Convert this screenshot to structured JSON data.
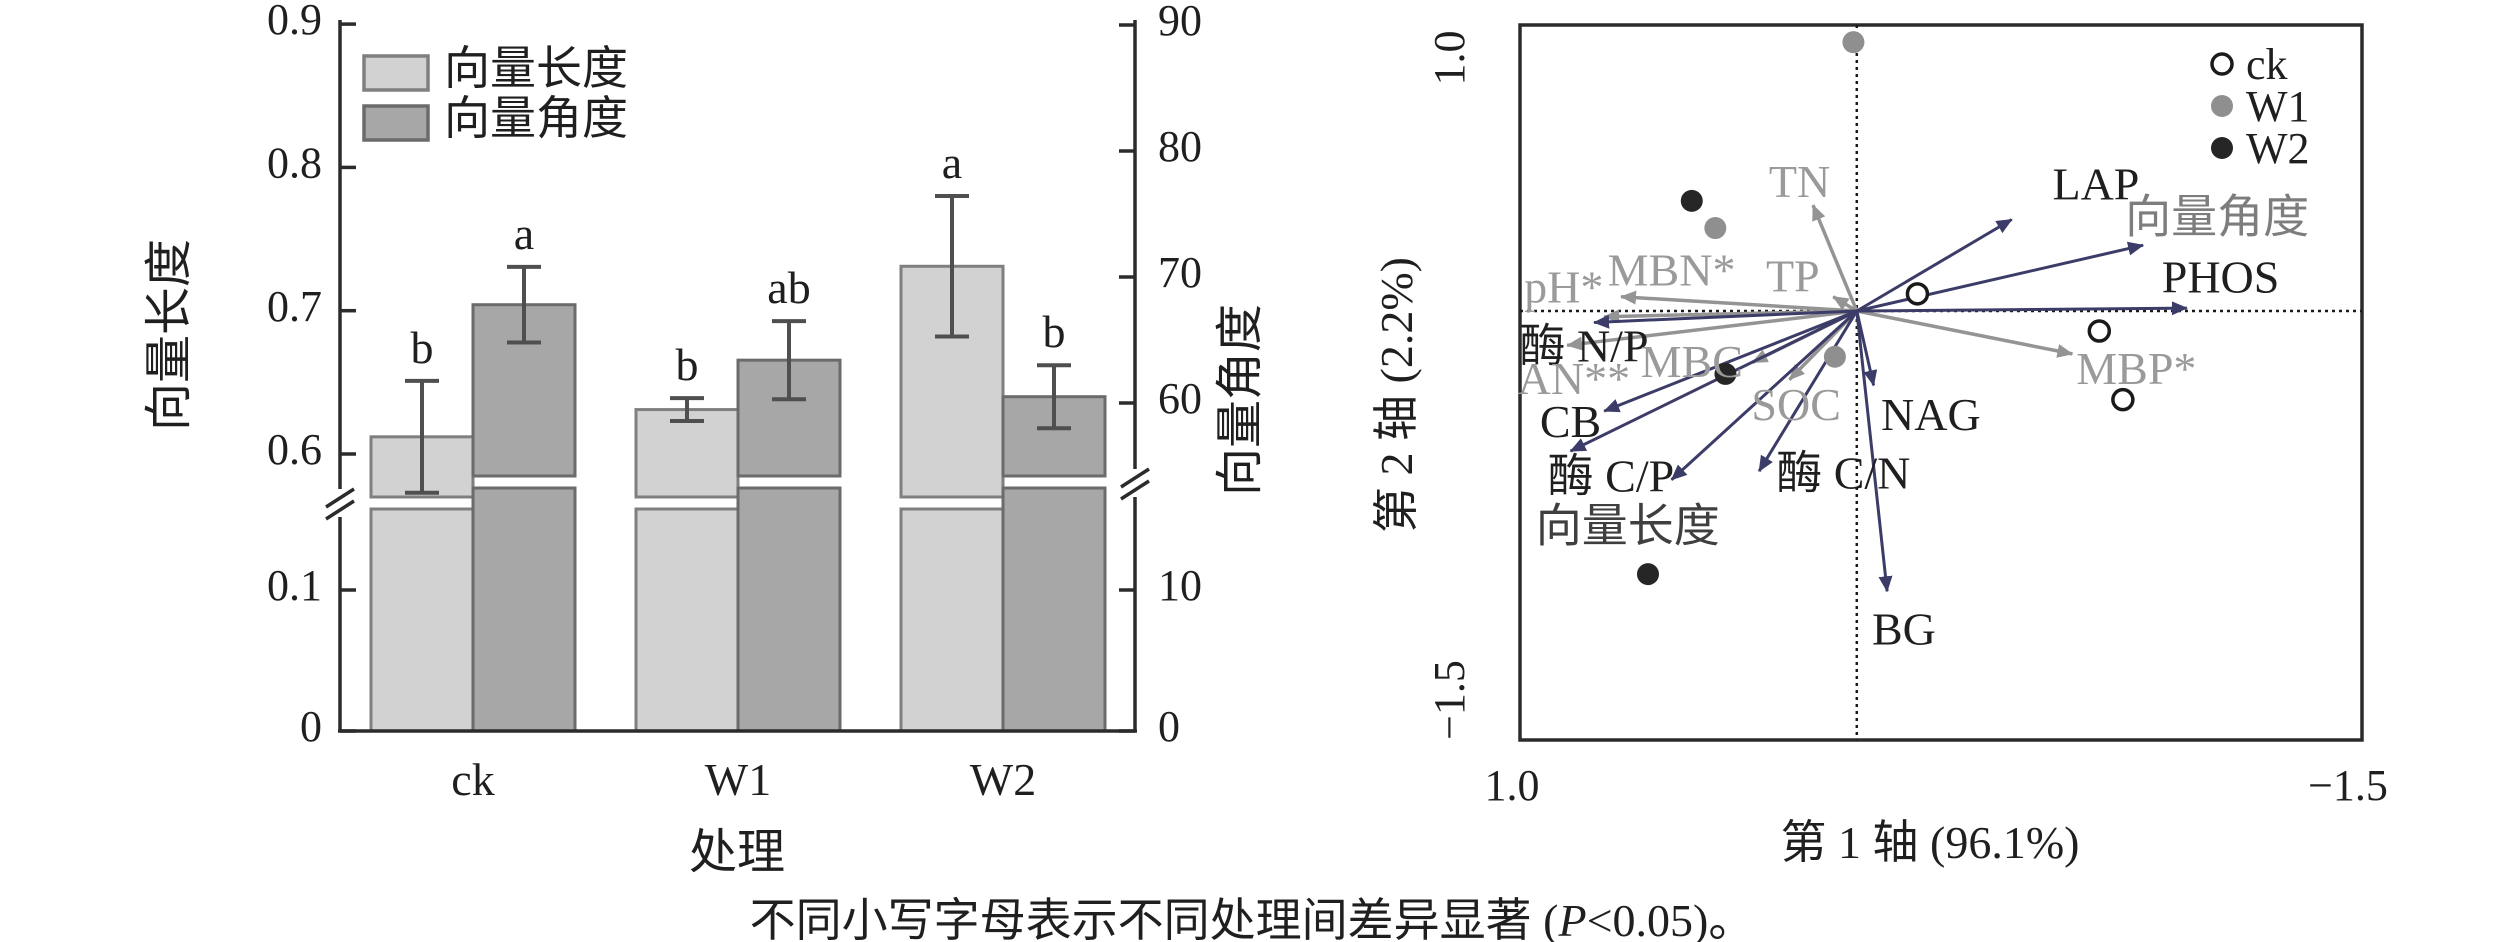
{
  "caption": {
    "prefix": "不同小写字母表示不同处理间差异显著 (",
    "italic_p": "P",
    "suffix": "<0.05)。"
  },
  "chart_data": [
    {
      "type": "bar",
      "panel": "left-dual-axis-bar-chart",
      "categories": [
        "ck",
        "W1",
        "W2"
      ],
      "xlabel": "处理",
      "left_axis": {
        "label": "向量长度",
        "tick_labels": [
          "0",
          "0.1",
          "0.6",
          "0.7",
          "0.8",
          "0.9"
        ],
        "axis_break": true,
        "break_between": [
          0.15,
          0.55
        ]
      },
      "right_axis": {
        "label": "向量角度",
        "tick_labels": [
          "0",
          "10",
          "60",
          "70",
          "80",
          "90"
        ],
        "axis_break": true,
        "break_between": [
          15,
          55
        ]
      },
      "legend_position": "top-left-inside",
      "series": [
        {
          "name": "向量长度",
          "axis": "left",
          "fill": "#d2d2d2",
          "stroke": "#7f7f7f",
          "values": [
            0.612,
            0.631,
            0.731
          ],
          "errors": [
            0.039,
            0.008,
            0.049
          ],
          "letters": [
            "b",
            "b",
            "a"
          ]
        },
        {
          "name": "向量角度",
          "axis": "right",
          "fill": "#a7a7a7",
          "stroke": "#6b6b6b",
          "values": [
            67.8,
            63.4,
            60.5
          ],
          "errors": [
            3.0,
            3.1,
            2.5
          ],
          "letters": [
            "a",
            "ab",
            "b"
          ]
        }
      ],
      "error_bar_color": "#4f4f4f"
    },
    {
      "type": "scatter",
      "panel": "right-rda-biplot",
      "xlabel": "第 1 轴 (96.1%)",
      "ylabel": "第 2 轴 (2.2%)",
      "xlim": [
        1.0,
        -1.5
      ],
      "ylim": [
        1.0,
        -1.5
      ],
      "x_tick_labels": [
        "1.0",
        "−1.5"
      ],
      "y_tick_labels": [
        "1.0",
        "−1.5"
      ],
      "grid": false,
      "crosshair_at_zero": true,
      "legend": [
        {
          "name": "ck",
          "marker": "open",
          "color": "#1a1a1a"
        },
        {
          "name": "W1",
          "marker": "filled",
          "color": "#8f8f8f"
        },
        {
          "name": "W2",
          "marker": "filled",
          "color": "#262626"
        }
      ],
      "groups": [
        {
          "name": "ck",
          "marker": "open",
          "color": "#1a1a1a",
          "points": [
            [
              -0.18,
              0.06
            ],
            [
              -0.72,
              -0.07
            ],
            [
              -0.79,
              -0.31
            ]
          ]
        },
        {
          "name": "W1",
          "marker": "filled",
          "color": "#8f8f8f",
          "points": [
            [
              0.01,
              0.94
            ],
            [
              0.42,
              0.29
            ],
            [
              0.065,
              -0.16
            ]
          ]
        },
        {
          "name": "W2",
          "marker": "filled",
          "color": "#262626",
          "points": [
            [
              0.49,
              0.385
            ],
            [
              0.39,
              -0.22
            ],
            [
              0.62,
              -0.92
            ]
          ]
        }
      ],
      "arrows": [
        {
          "label": "LAP",
          "x": -0.46,
          "y": 0.32,
          "lx": -0.71,
          "ly": 0.445,
          "kind": "response"
        },
        {
          "label": "向量角度",
          "x": -0.85,
          "y": 0.23,
          "lx": -1.07,
          "ly": 0.33,
          "kind": "response",
          "label_color": "#7d7d7d"
        },
        {
          "label": "PHOS",
          "x": -0.98,
          "y": 0.01,
          "lx": -1.08,
          "ly": 0.12,
          "kind": "response"
        },
        {
          "label": "NAG",
          "x": -0.05,
          "y": -0.26,
          "lx": -0.22,
          "ly": -0.36,
          "kind": "response"
        },
        {
          "label": "BG",
          "x": -0.09,
          "y": -0.98,
          "lx": -0.14,
          "ly": -1.11,
          "kind": "response"
        },
        {
          "label": "CB",
          "x": 0.75,
          "y": -0.35,
          "lx": 0.85,
          "ly": -0.385,
          "kind": "response"
        },
        {
          "label": "酶 C/P",
          "x": 0.85,
          "y": -0.49,
          "lx": 0.73,
          "ly": -0.575,
          "kind": "response"
        },
        {
          "label": "向量长度",
          "x": 0.55,
          "y": -0.59,
          "lx": 0.68,
          "ly": -0.75,
          "kind": "response",
          "label_color": "#3f3f3f"
        },
        {
          "label": "酶 C/N",
          "x": 0.29,
          "y": -0.56,
          "lx": 0.04,
          "ly": -0.565,
          "kind": "response"
        },
        {
          "label": "酶 N/P",
          "x": 0.78,
          "y": -0.04,
          "lx": 0.81,
          "ly": -0.12,
          "kind": "response"
        },
        {
          "label": "pH*",
          "x": 0.7,
          "y": 0.05,
          "lx": 0.87,
          "ly": 0.085,
          "kind": "factor"
        },
        {
          "label": "MBN*",
          "x": 0.75,
          "y": -0.02,
          "lx": 0.55,
          "ly": 0.145,
          "kind": "factor"
        },
        {
          "label": "AN**",
          "x": 0.86,
          "y": -0.12,
          "lx": 0.84,
          "ly": -0.235,
          "kind": "factor"
        },
        {
          "label": "MBC",
          "x": 0.31,
          "y": -0.18,
          "lx": 0.49,
          "ly": -0.175,
          "kind": "factor"
        },
        {
          "label": "SOC",
          "x": 0.2,
          "y": -0.24,
          "lx": 0.18,
          "ly": -0.325,
          "kind": "factor"
        },
        {
          "label": "TP",
          "x": 0.07,
          "y": 0.05,
          "lx": 0.19,
          "ly": 0.125,
          "kind": "factor"
        },
        {
          "label": "TN",
          "x": 0.13,
          "y": 0.37,
          "lx": 0.17,
          "ly": 0.455,
          "kind": "factor"
        },
        {
          "label": "MBP*",
          "x": -0.64,
          "y": -0.15,
          "lx": -0.83,
          "ly": -0.2,
          "kind": "factor"
        }
      ],
      "colors": {
        "response_arrow": "#3c3c68",
        "factor_arrow": "#949494",
        "factor_label": "#9a9a9a",
        "response_label": "#1f1f1f",
        "axis": "#2b2b2b"
      }
    }
  ]
}
